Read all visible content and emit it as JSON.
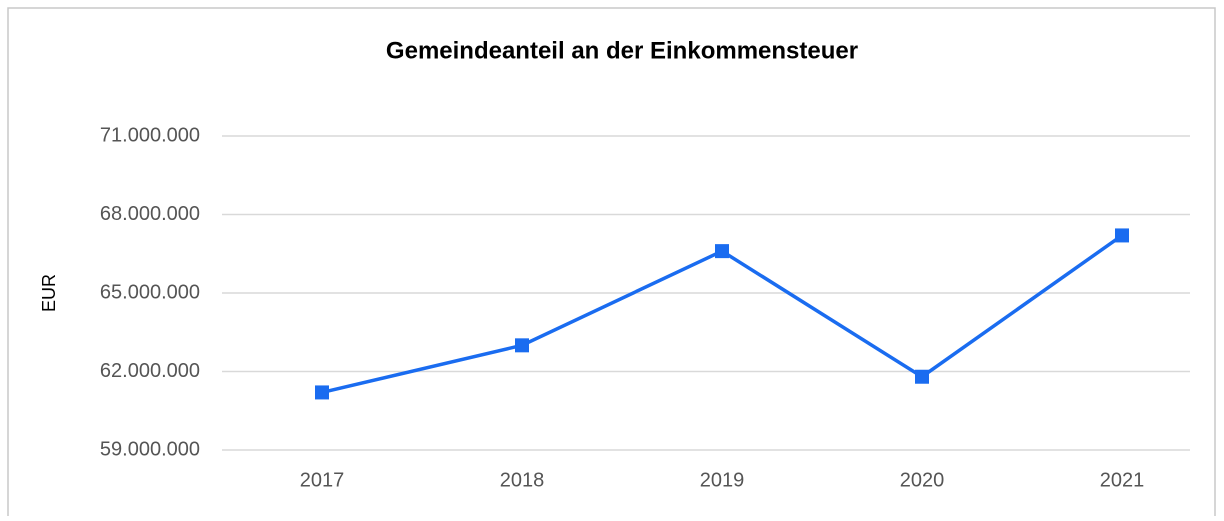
{
  "chart_data": {
    "type": "line",
    "title": "Gemeindeanteil an der Einkommensteuer",
    "y_label": "EUR",
    "categories": [
      "2017",
      "2018",
      "2019",
      "2020",
      "2021"
    ],
    "values": [
      61200000,
      63000000,
      66600000,
      61800000,
      67200000
    ],
    "color": "#1a6cf0",
    "ylim": [
      59000000,
      71000000
    ],
    "yticks": [
      {
        "value": 59000000,
        "label": "59.000.000"
      },
      {
        "value": 62000000,
        "label": "62.000.000"
      },
      {
        "value": 65000000,
        "label": "65.000.000"
      },
      {
        "value": 68000000,
        "label": "68.000.000"
      },
      {
        "value": 71000000,
        "label": "71.000.000"
      }
    ],
    "grid": true
  }
}
